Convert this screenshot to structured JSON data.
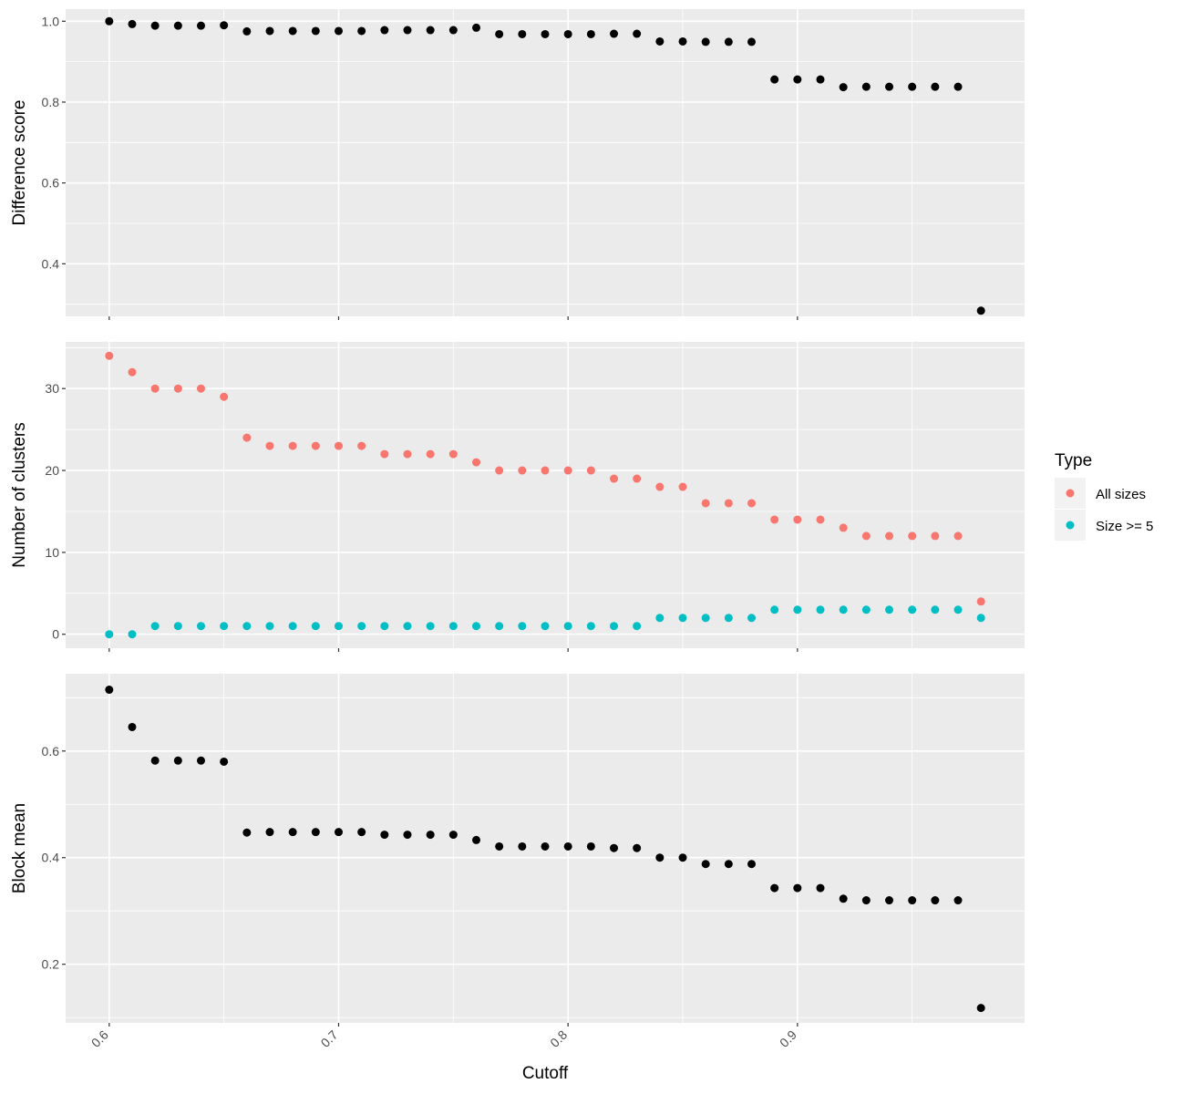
{
  "chart_data": {
    "type": "scatter",
    "xlabel": "Cutoff",
    "x_ticks": [
      0.6,
      0.7,
      0.8,
      0.9
    ],
    "x_tick_labels": [
      "0.6",
      "0.7",
      "0.8",
      "0.9"
    ],
    "xlim": [
      0.581,
      0.999
    ],
    "x": [
      0.6,
      0.61,
      0.62,
      0.63,
      0.64,
      0.65,
      0.66,
      0.67,
      0.68,
      0.69,
      0.7,
      0.71,
      0.72,
      0.73,
      0.74,
      0.75,
      0.76,
      0.77,
      0.78,
      0.79,
      0.8,
      0.81,
      0.82,
      0.83,
      0.84,
      0.85,
      0.86,
      0.87,
      0.88,
      0.89,
      0.9,
      0.91,
      0.92,
      0.93,
      0.94,
      0.95,
      0.96,
      0.97,
      0.98
    ],
    "grid": true,
    "legend": {
      "title": "Type",
      "position": "right",
      "entries": [
        {
          "label": "All sizes",
          "color": "#F8766D"
        },
        {
          "label": "Size >= 5",
          "color": "#00BFC4"
        }
      ]
    },
    "panels": [
      {
        "ylabel": "Difference score",
        "ylim": [
          0.27,
          1.03
        ],
        "y_ticks": [
          0.4,
          0.6,
          0.8,
          1.0
        ],
        "y_tick_labels": [
          "0.4",
          "0.6",
          "0.8",
          "1.0"
        ],
        "series": [
          {
            "color": "#000000",
            "values": [
              1.0,
              0.993,
              0.989,
              0.989,
              0.989,
              0.99,
              0.975,
              0.976,
              0.976,
              0.976,
              0.976,
              0.976,
              0.978,
              0.978,
              0.978,
              0.978,
              0.984,
              0.968,
              0.968,
              0.968,
              0.968,
              0.968,
              0.969,
              0.969,
              0.95,
              0.95,
              0.949,
              0.949,
              0.949,
              0.856,
              0.856,
              0.856,
              0.837,
              0.838,
              0.838,
              0.838,
              0.838,
              0.838,
              0.284
            ]
          }
        ]
      },
      {
        "ylabel": "Number of clusters",
        "ylim": [
          -1.7,
          35.7
        ],
        "y_ticks": [
          0,
          10,
          20,
          30
        ],
        "y_tick_labels": [
          "0",
          "10",
          "20",
          "30"
        ],
        "series": [
          {
            "name": "All sizes",
            "color": "#F8766D",
            "values": [
              34,
              32,
              30,
              30,
              30,
              29,
              24,
              23,
              23,
              23,
              23,
              23,
              22,
              22,
              22,
              22,
              21,
              20,
              20,
              20,
              20,
              20,
              19,
              19,
              18,
              18,
              16,
              16,
              16,
              14,
              14,
              14,
              13,
              12,
              12,
              12,
              12,
              12,
              4
            ]
          },
          {
            "name": "Size >= 5",
            "color": "#00BFC4",
            "values": [
              0,
              0,
              1,
              1,
              1,
              1,
              1,
              1,
              1,
              1,
              1,
              1,
              1,
              1,
              1,
              1,
              1,
              1,
              1,
              1,
              1,
              1,
              1,
              1,
              2,
              2,
              2,
              2,
              2,
              3,
              3,
              3,
              3,
              3,
              3,
              3,
              3,
              3,
              2
            ]
          }
        ]
      },
      {
        "ylabel": "Block mean",
        "ylim": [
          0.09,
          0.745
        ],
        "y_ticks": [
          0.2,
          0.4,
          0.6
        ],
        "y_tick_labels": [
          "0.2",
          "0.4",
          "0.6"
        ],
        "series": [
          {
            "color": "#000000",
            "values": [
              0.715,
              0.645,
              0.582,
              0.582,
              0.582,
              0.58,
              0.447,
              0.448,
              0.448,
              0.448,
              0.448,
              0.448,
              0.443,
              0.443,
              0.443,
              0.443,
              0.433,
              0.421,
              0.421,
              0.421,
              0.421,
              0.421,
              0.418,
              0.418,
              0.4,
              0.4,
              0.388,
              0.388,
              0.388,
              0.343,
              0.343,
              0.343,
              0.323,
              0.32,
              0.32,
              0.32,
              0.32,
              0.32,
              0.118
            ]
          }
        ]
      }
    ]
  }
}
